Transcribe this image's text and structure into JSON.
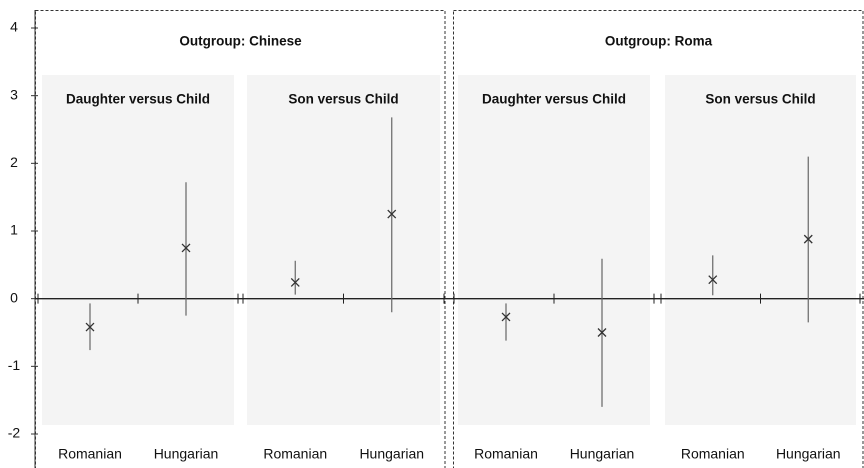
{
  "chart_data": {
    "type": "errorbar",
    "ylim": [
      -2,
      4
    ],
    "yticks": [
      -2,
      -1,
      0,
      1,
      2,
      3,
      4
    ],
    "color": "#333333",
    "groups": [
      {
        "title": "Outgroup: Chinese",
        "panels": [
          {
            "title": "Daughter versus Child",
            "categories": [
              "Romanian",
              "Hungarian"
            ],
            "values": [
              -0.42,
              0.75
            ],
            "lower": [
              -0.76,
              -0.25
            ],
            "upper": [
              -0.07,
              1.72
            ]
          },
          {
            "title": "Son versus Child",
            "categories": [
              "Romanian",
              "Hungarian"
            ],
            "values": [
              0.24,
              1.25
            ],
            "lower": [
              0.06,
              -0.2
            ],
            "upper": [
              0.56,
              2.68
            ]
          }
        ]
      },
      {
        "title": "Outgroup: Roma",
        "panels": [
          {
            "title": "Daughter versus Child",
            "categories": [
              "Romanian",
              "Hungarian"
            ],
            "values": [
              -0.27,
              -0.5
            ],
            "lower": [
              -0.62,
              -1.6
            ],
            "upper": [
              -0.07,
              0.59
            ]
          },
          {
            "title": "Son versus Child",
            "categories": [
              "Romanian",
              "Hungarian"
            ],
            "values": [
              0.28,
              0.88
            ],
            "lower": [
              0.05,
              -0.35
            ],
            "upper": [
              0.64,
              2.1
            ]
          }
        ]
      }
    ]
  }
}
